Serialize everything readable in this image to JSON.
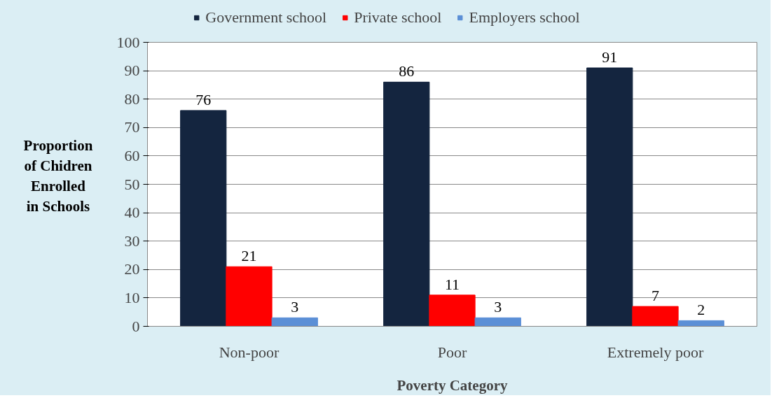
{
  "chart_data": {
    "type": "bar",
    "xlabel": "Poverty Category",
    "ylabel": "Proportion of Chidren Enrolled in Schools",
    "categories": [
      "Non-poor",
      "Poor",
      "Extremely poor"
    ],
    "series": [
      {
        "name": "Government school",
        "color": "#14253f",
        "values": [
          76,
          86,
          91
        ]
      },
      {
        "name": "Private school",
        "color": "#ff0000",
        "values": [
          21,
          11,
          7
        ]
      },
      {
        "name": "Employers school",
        "color": "#5b8fd6",
        "values": [
          3,
          3,
          2
        ]
      }
    ],
    "ylim": [
      0,
      100
    ],
    "yticks": [
      0,
      10,
      20,
      30,
      40,
      50,
      60,
      70,
      80,
      90,
      100
    ],
    "grid": "y",
    "legend": "top",
    "data_labels": true
  }
}
